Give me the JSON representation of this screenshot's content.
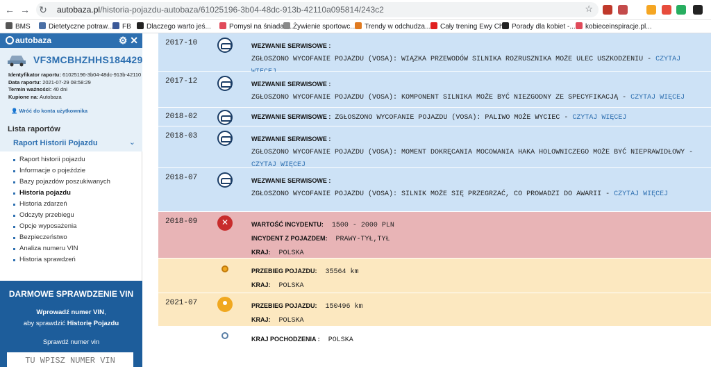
{
  "browser": {
    "url_host": "autobaza.pl",
    "url_path": "/historia-pojazdu-autobaza/61025196-3b04-48dc-913b-42110a095814/243c2"
  },
  "bookmarks": [
    {
      "label": "BMS",
      "color": "#555555"
    },
    {
      "label": "Dietetyczne potraw...",
      "color": "#4a6fa5"
    },
    {
      "label": "FB",
      "color": "#3b5998"
    },
    {
      "label": "Dlaczego warto jeś...",
      "color": "#222222"
    },
    {
      "label": "Pomysł na śniadani...",
      "color": "#e04a5a"
    },
    {
      "label": "Żywienie sportowc...",
      "color": "#8a8a8a"
    },
    {
      "label": "Trendy w odchudza...",
      "color": "#e07a20"
    },
    {
      "label": "Cały trening Ewy Ch...",
      "color": "#e02020"
    },
    {
      "label": "Porady dla kobiet -...",
      "color": "#222222"
    },
    {
      "label": "kobieceinspiracje.pl...",
      "color": "#e04a5a"
    }
  ],
  "sidebar": {
    "brand": "autobaza",
    "vin": "VF3MCBHZHHS184429",
    "meta": [
      {
        "label": "Identyfikator raportu:",
        "value": "61025196-3b04-48dc-913b-42110"
      },
      {
        "label": "Data raportu:",
        "value": "2021-07-29 08:58:29"
      },
      {
        "label": "Termin ważności:",
        "value": "40 dni"
      },
      {
        "label": "Kupione na:",
        "value": "Autobaza"
      }
    ],
    "back_link": "Wróć do konta użytkownika",
    "list_title": "Lista raportów",
    "report_title": "Raport Historii Pojazdu",
    "menu": [
      "Raport historii pojazdu",
      "Informacje o pojeździe",
      "Bazy pojazdów poszukiwanych",
      "Historia pojazdu",
      "Historia zdarzeń",
      "Odczyty przebiegu",
      "Opcje wyposażenia",
      "Bezpieczeństwo",
      "Analiza numeru VIN",
      "Historia sprawdzeń"
    ],
    "active_index": 3,
    "promo": {
      "title": "DARMOWE SPRAWDZENIE VIN",
      "line1_pre": "Wprowadź numer VIN",
      "line1_post": ",",
      "line2_pre": "aby sprawdzić ",
      "line2_bold": "Historię Pojazdu",
      "input_label": "Sprawdź numer vin",
      "input_placeholder": "TU WPISZ NUMER VIN"
    }
  },
  "timeline": [
    {
      "date": "2017-10",
      "kind": "blue",
      "node": "car",
      "label": "WEZWANIE SERWISOWE :",
      "text": "ZGŁOSZONO WYCOFANIE POJAZDU (VOSA): WIĄZKA PRZEWODÓW SILNIKA ROZRUSZNIKA MOŻE ULEC USZKODZENIU - ",
      "link": "CZYTAJ WIĘCEJ"
    },
    {
      "date": "2017-12",
      "kind": "blue",
      "node": "car",
      "label": "WEZWANIE SERWISOWE :",
      "text": "ZGŁOSZONO WYCOFANIE POJAZDU (VOSA): KOMPONENT SILNIKA MOŻE BYĆ NIEZGODNY ZE SPECYFIKACJĄ - ",
      "link": "CZYTAJ WIĘCEJ"
    },
    {
      "date": "2018-02",
      "kind": "blue",
      "node": "car",
      "label": "WEZWANIE SERWISOWE :",
      "text": "ZGŁOSZONO WYCOFANIE POJAZDU (VOSA): PALIWO MOŻE WYCIEC - ",
      "link": "CZYTAJ WIĘCEJ"
    },
    {
      "date": "2018-03",
      "kind": "blue",
      "node": "car",
      "label": "WEZWANIE SERWISOWE :",
      "text": "ZGŁOSZONO WYCOFANIE POJAZDU (VOSA): MOMENT DOKRĘCANIA MOCOWANIA HAKA HOLOWNICZEGO MOŻE BYĆ NIEPRAWIDŁOWY - ",
      "link": "CZYTAJ WIĘCEJ"
    },
    {
      "date": "2018-07",
      "kind": "blue",
      "node": "car",
      "label": "WEZWANIE SERWISOWE :",
      "text": "ZGŁOSZONO WYCOFANIE POJAZDU (VOSA): SILNIK MOŻE SIĘ PRZEGRZAĆ, CO PROWADZI DO AWARII - ",
      "link": "CZYTAJ WIĘCEJ"
    },
    {
      "date": "2018-09",
      "kind": "red",
      "node": "tools",
      "fields": [
        {
          "label": "WARTOŚĆ INCYDENTU:",
          "value": "1500 - 2000 PLN"
        },
        {
          "label": "INCYDENT Z POJAZDEM:",
          "value": "PRAWY-TYŁ,TYŁ"
        },
        {
          "label": "KRAJ:",
          "value": "POLSKA"
        }
      ]
    },
    {
      "date": "",
      "kind": "yellow",
      "node": "dot",
      "fields": [
        {
          "label": "PRZEBIEG POJAZDU:",
          "value": "35564 km"
        },
        {
          "label": "KRAJ:",
          "value": "POLSKA"
        }
      ]
    },
    {
      "date": "2021-07",
      "kind": "yellow",
      "node": "person",
      "fields": [
        {
          "label": "PRZEBIEG POJAZDU:",
          "value": "150496 km"
        },
        {
          "label": "KRAJ:",
          "value": "POLSKA"
        }
      ]
    },
    {
      "date": "",
      "kind": "white",
      "node": "ring",
      "fields": [
        {
          "label": "KRAJ POCHODZENIA :",
          "value": "POLSKA"
        }
      ]
    }
  ]
}
